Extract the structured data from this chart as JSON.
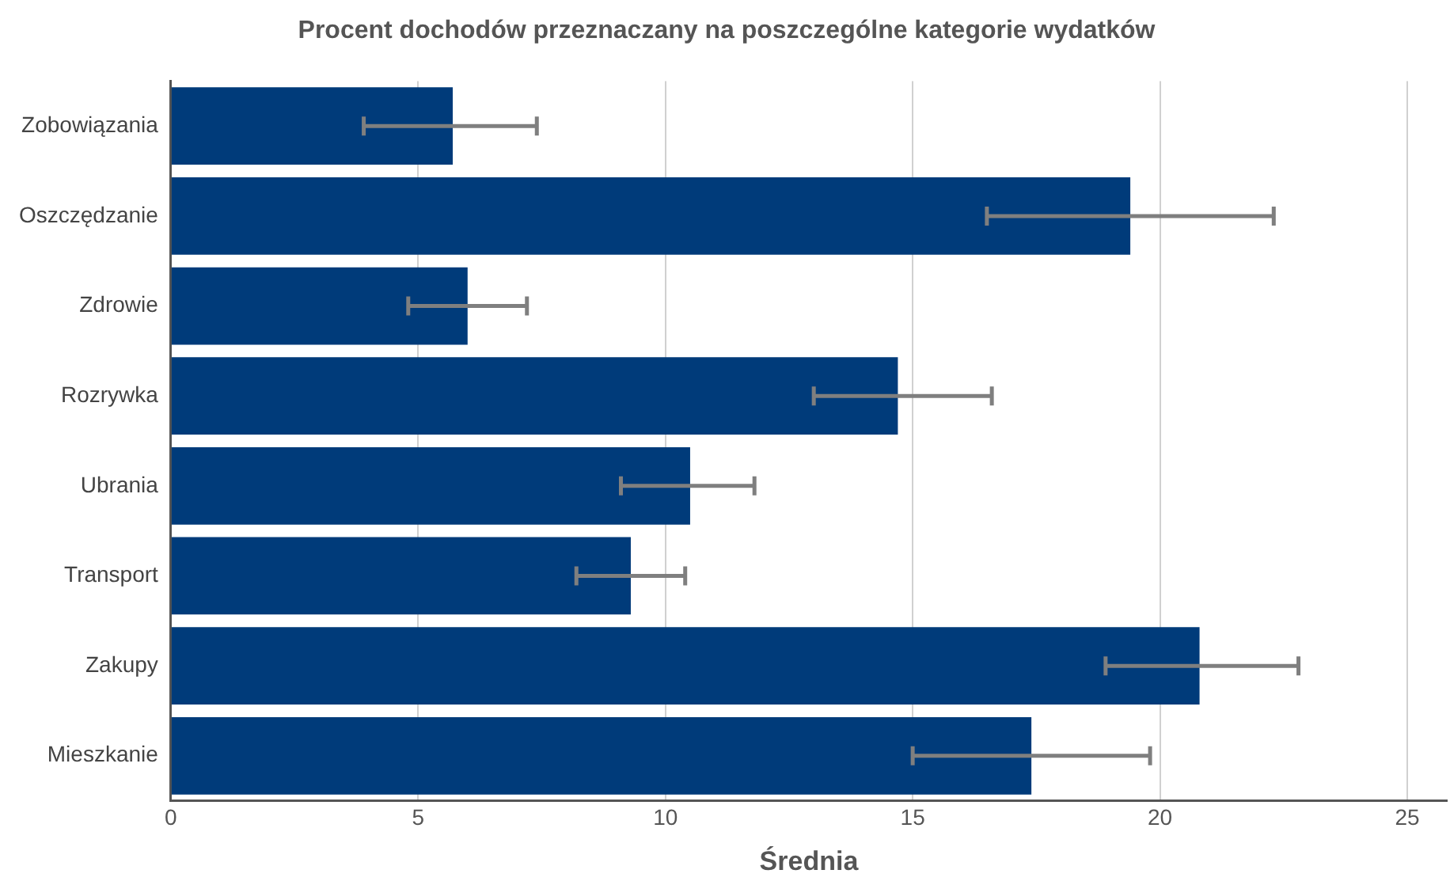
{
  "chart_data": {
    "type": "bar",
    "orientation": "horizontal",
    "title": "Procent dochodów przeznaczany na poszczególne kategorie wydatków",
    "xlabel": "Średnia",
    "categories": [
      "Zobowiązania",
      "Oszczędzanie",
      "Zdrowie",
      "Rozrywka",
      "Ubrania",
      "Transport",
      "Zakupy",
      "Mieszkanie"
    ],
    "values": [
      5.7,
      19.4,
      6.0,
      14.7,
      10.5,
      9.3,
      20.8,
      17.4
    ],
    "errors": [
      [
        3.9,
        7.4
      ],
      [
        16.5,
        22.3
      ],
      [
        4.8,
        7.2
      ],
      [
        13.0,
        16.6
      ],
      [
        9.1,
        11.8
      ],
      [
        8.2,
        10.4
      ],
      [
        18.9,
        22.8
      ],
      [
        15.0,
        19.8
      ]
    ],
    "color": "#003b7a",
    "xlim": [
      0,
      25.8
    ],
    "xticks": [
      0,
      5,
      10,
      15,
      20,
      25
    ],
    "grid": "x",
    "legend": false
  }
}
